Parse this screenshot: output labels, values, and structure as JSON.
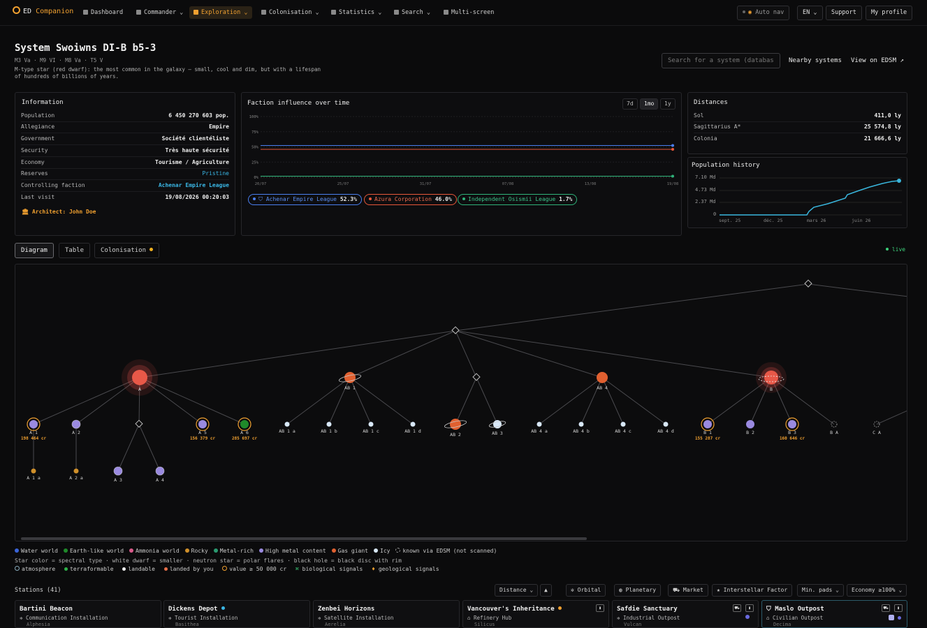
{
  "app": {
    "brand_prefix": "ED",
    "brand_name": "Companion"
  },
  "nav": {
    "items": [
      "Dashboard",
      "Commander",
      "Exploration",
      "Colonisation",
      "Statistics",
      "Search",
      "Multi-screen"
    ],
    "active": "Exploration",
    "right": {
      "auto_nav": "Auto nav",
      "lang": "EN",
      "support": "Support",
      "profile": "My profile"
    }
  },
  "system": {
    "title": "System Swoiwns DI-B b5-3",
    "stars_line": "M3 Va · M9 VI · M8 Va · T5 V",
    "description": "M-type star (red dwarf): the most common in the galaxy — small, cool and dim, but with a lifespan of hundreds of billions of years."
  },
  "header_actions": {
    "search_placeholder": "Search for a system (database)",
    "nearby": "Nearby systems",
    "edsm": "View on EDSM ↗"
  },
  "information": {
    "title": "Information",
    "rows": [
      {
        "k": "Population",
        "v": "6 450 270 603 pop."
      },
      {
        "k": "Allegiance",
        "v": "Empire"
      },
      {
        "k": "Government",
        "v": "Société clientéliste"
      },
      {
        "k": "Security",
        "v": "Très haute sécurité"
      },
      {
        "k": "Economy",
        "v": "Tourisme / Agriculture"
      },
      {
        "k": "Reserves",
        "v": "Pristine"
      },
      {
        "k": "Controlling faction",
        "v": "Achenar Empire League"
      },
      {
        "k": "Last visit",
        "v": "19/08/2026 00:20:03"
      }
    ],
    "architect": "Architect: John Doe"
  },
  "faction": {
    "title": "Faction influence over time",
    "ranges": [
      "7d",
      "1mo",
      "1y"
    ],
    "active_range": "1mo",
    "y_ticks": [
      "100%",
      "75%",
      "50%",
      "25%",
      "0%"
    ],
    "x_ticks": [
      "20/07",
      "25/07",
      "31/07",
      "07/08",
      "13/08",
      "19/08"
    ],
    "factions": [
      {
        "name": "Achenar Empire League",
        "pct": "52.3%",
        "color": "#4a7ff0"
      },
      {
        "name": "Azura Corporation",
        "pct": "46.0%",
        "color": "#e8583a"
      },
      {
        "name": "Independent Osismii League",
        "pct": "1.7%",
        "color": "#2fb37a"
      }
    ]
  },
  "distances": {
    "title": "Distances",
    "rows": [
      {
        "k": "Sol",
        "v": "411,0 ly"
      },
      {
        "k": "Sagittarius A*",
        "v": "25 574,8 ly"
      },
      {
        "k": "Colonia",
        "v": "21 666,6 ly"
      }
    ]
  },
  "population_history": {
    "title": "Population history",
    "y_ticks": [
      "7.10 Md",
      "4.73 Md",
      "2.37 Md",
      "0"
    ],
    "x_ticks": [
      "sept. 25",
      "déc. 25",
      "mars 26",
      "juin 26"
    ]
  },
  "tabs": {
    "items": [
      "Diagram",
      "Table",
      "Colonisation"
    ],
    "active": "Diagram",
    "live": "live"
  },
  "bodies": {
    "labels": [
      "A",
      "AB 1",
      "AB 4",
      "B",
      "A 1",
      "A 2",
      "A 5",
      "A 6",
      "AB 1 a",
      "AB 1 b",
      "AB 1 c",
      "AB 1 d",
      "AB 2",
      "AB 3",
      "AB 4 a",
      "AB 4 b",
      "AB 4 c",
      "AB 4 d",
      "B 1",
      "B 2",
      "B 3",
      "B A",
      "C A",
      "A 1 a",
      "A 2 a",
      "A 3",
      "A 4"
    ],
    "values": {
      "A 1": "198 464 cr",
      "A 5": "156 379 cr",
      "A 6": "285 697 cr",
      "B 1": "155 287 cr",
      "B 3": "160 646 cr"
    }
  },
  "legend": {
    "line1": [
      {
        "label": "Water world",
        "color": "#3a64d8"
      },
      {
        "label": "Earth-like world",
        "color": "#1f8a2a"
      },
      {
        "label": "Ammonia world",
        "color": "#d85a8a"
      },
      {
        "label": "Rocky",
        "color": "#d0902a"
      },
      {
        "label": "Metal-rich",
        "color": "#2a9a70"
      },
      {
        "label": "High metal content",
        "color": "#9a8ae0"
      },
      {
        "label": "Gas giant",
        "color": "#e06030"
      },
      {
        "label": "Icy",
        "color": "#d8e8f8"
      },
      {
        "label": "known via EDSM (not scanned)",
        "color": "none"
      }
    ],
    "line2": "Star color = spectral type · white dwarf = smaller · neutron star = polar flares · black hole = black disc with rim",
    "line3": [
      "atmosphere",
      "terraformable",
      "landable",
      "landed by you",
      "value ≥ 50 000 cr",
      "biological signals",
      "geological signals"
    ]
  },
  "stations": {
    "title": "Stations (41)",
    "controls": {
      "sort": "Distance",
      "filters": [
        "Orbital",
        "Planetary",
        "Market",
        "Interstellar Factor"
      ],
      "min_pads": "Min. pads",
      "economy": "Economy ≥100%"
    },
    "cards": [
      {
        "name": "Bartini Beacon",
        "type": "Communication Installation",
        "sub": "Alphesia"
      },
      {
        "name": "Dickens Depot",
        "type": "Tourist Installation",
        "sub": "Basithea"
      },
      {
        "name": "Zenbei Horizons",
        "type": "Satellite Installation",
        "sub": "Aerelia"
      },
      {
        "name": "Vancouver's Inheritance",
        "type": "Refinery Hub",
        "sub": "Silicus"
      },
      {
        "name": "Safdie Sanctuary",
        "type": "Industrial Outpost",
        "sub": "Vulcan"
      },
      {
        "name": "Maslo Outpost",
        "type": "Civilian Outpost",
        "sub": "Decima"
      }
    ]
  }
}
